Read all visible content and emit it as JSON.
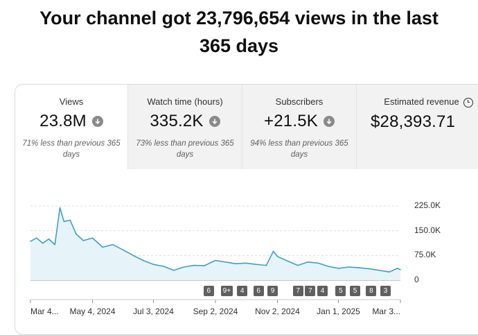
{
  "headline": {
    "line1": "Your channel got 23,796,654 views in the last",
    "line2": "365 days"
  },
  "tabs": [
    {
      "title": "Views",
      "value": "23.8M",
      "icon": "arrow-down-circle-icon",
      "comparison": "71% less than previous 365 days",
      "active": true
    },
    {
      "title": "Watch time (hours)",
      "value": "335.2K",
      "icon": "arrow-down-circle-icon",
      "comparison": "73% less than previous 365 days",
      "active": false
    },
    {
      "title": "Subscribers",
      "value": "+21.5K",
      "icon": "arrow-down-circle-icon",
      "comparison": "94% less than previous 365 days",
      "active": false
    },
    {
      "title": "Estimated revenue",
      "value": "$28,393.71",
      "icon": "clock-icon",
      "comparison": "",
      "active": false
    }
  ],
  "colors": {
    "line": "#3ea0c6",
    "fill": "#e6f3f8",
    "marker": "#5f5f5f"
  },
  "chart_data": {
    "type": "area",
    "title": "",
    "xlabel": "",
    "ylabel": "",
    "y_tick_labels": [
      "225.0K",
      "150.0K",
      "75.0K",
      "0"
    ],
    "y_ticks": [
      225000,
      150000,
      75000,
      0
    ],
    "ylim": [
      0,
      225000
    ],
    "x_tick_labels": [
      "Mar 4...",
      "May 4, 2024",
      "Jul 3, 2024",
      "Sep 2, 2024",
      "Nov 2, 2024",
      "Jan 1, 2025",
      "Mar 3..."
    ],
    "x_ticks": [
      "2024-03-04",
      "2024-05-04",
      "2024-07-03",
      "2024-09-02",
      "2024-11-02",
      "2025-01-01",
      "2025-03-03"
    ],
    "xlim": [
      "2024-03-04",
      "2025-03-03"
    ],
    "grid": true,
    "series": [
      {
        "values": [
          {
            "x": "2024-03-04",
            "y": 118000
          },
          {
            "x": "2024-03-10",
            "y": 128000
          },
          {
            "x": "2024-03-16",
            "y": 112000
          },
          {
            "x": "2024-03-22",
            "y": 125000
          },
          {
            "x": "2024-03-28",
            "y": 108000
          },
          {
            "x": "2024-04-02",
            "y": 220000
          },
          {
            "x": "2024-04-06",
            "y": 178000
          },
          {
            "x": "2024-04-12",
            "y": 182000
          },
          {
            "x": "2024-04-18",
            "y": 140000
          },
          {
            "x": "2024-04-25",
            "y": 120000
          },
          {
            "x": "2024-05-04",
            "y": 128000
          },
          {
            "x": "2024-05-14",
            "y": 100000
          },
          {
            "x": "2024-05-24",
            "y": 108000
          },
          {
            "x": "2024-06-03",
            "y": 92000
          },
          {
            "x": "2024-06-13",
            "y": 75000
          },
          {
            "x": "2024-06-23",
            "y": 60000
          },
          {
            "x": "2024-07-03",
            "y": 48000
          },
          {
            "x": "2024-07-13",
            "y": 42000
          },
          {
            "x": "2024-07-23",
            "y": 30000
          },
          {
            "x": "2024-08-02",
            "y": 40000
          },
          {
            "x": "2024-08-12",
            "y": 45000
          },
          {
            "x": "2024-08-22",
            "y": 44000
          },
          {
            "x": "2024-09-02",
            "y": 60000
          },
          {
            "x": "2024-09-12",
            "y": 55000
          },
          {
            "x": "2024-09-22",
            "y": 50000
          },
          {
            "x": "2024-10-02",
            "y": 52000
          },
          {
            "x": "2024-10-12",
            "y": 48000
          },
          {
            "x": "2024-10-22",
            "y": 45000
          },
          {
            "x": "2024-10-29",
            "y": 88000
          },
          {
            "x": "2024-11-02",
            "y": 72000
          },
          {
            "x": "2024-11-12",
            "y": 58000
          },
          {
            "x": "2024-11-22",
            "y": 45000
          },
          {
            "x": "2024-12-02",
            "y": 55000
          },
          {
            "x": "2024-12-12",
            "y": 52000
          },
          {
            "x": "2024-12-22",
            "y": 42000
          },
          {
            "x": "2025-01-01",
            "y": 36000
          },
          {
            "x": "2025-01-11",
            "y": 40000
          },
          {
            "x": "2025-01-21",
            "y": 38000
          },
          {
            "x": "2025-01-31",
            "y": 35000
          },
          {
            "x": "2025-02-10",
            "y": 30000
          },
          {
            "x": "2025-02-20",
            "y": 25000
          },
          {
            "x": "2025-02-28",
            "y": 36000
          },
          {
            "x": "2025-03-03",
            "y": 32000
          }
        ]
      }
    ],
    "markers": [
      {
        "label": "6",
        "x": "2024-08-26"
      },
      {
        "label": "9+",
        "x": "2024-09-12"
      },
      {
        "label": "4",
        "x": "2024-09-28"
      },
      {
        "label": "6",
        "x": "2024-10-14"
      },
      {
        "label": "9",
        "x": "2024-10-28"
      },
      {
        "label": "7",
        "x": "2024-11-22"
      },
      {
        "label": "7",
        "x": "2024-12-04"
      },
      {
        "label": "4",
        "x": "2024-12-16"
      },
      {
        "label": "5",
        "x": "2025-01-03"
      },
      {
        "label": "5",
        "x": "2025-01-17"
      },
      {
        "label": "8",
        "x": "2025-02-02"
      },
      {
        "label": "3",
        "x": "2025-02-16"
      }
    ]
  }
}
